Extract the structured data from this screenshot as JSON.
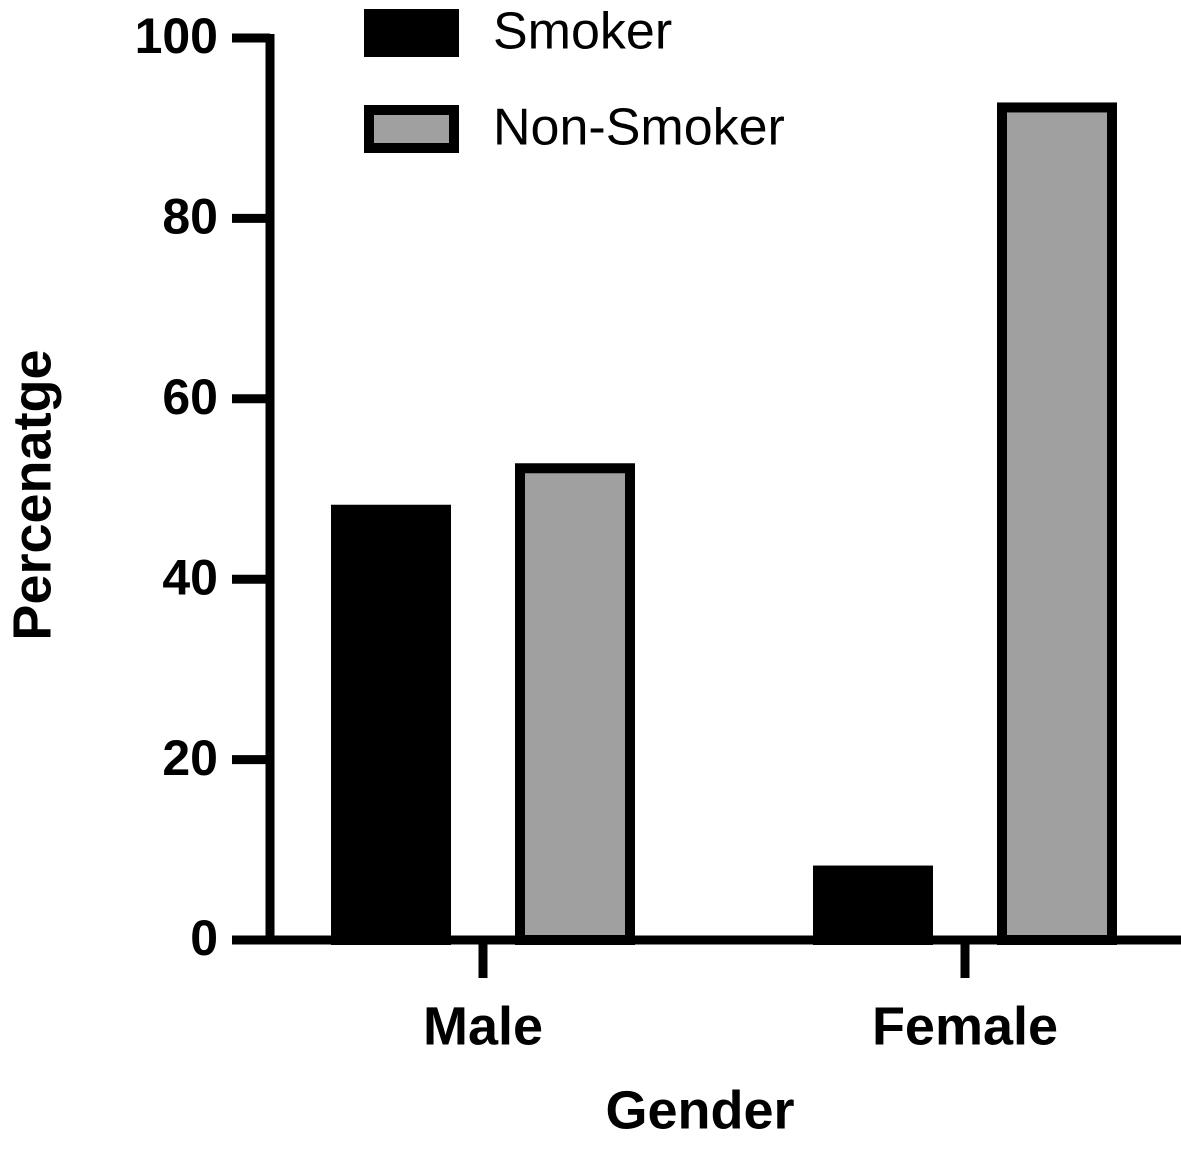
{
  "chart_data": {
    "type": "bar",
    "x_label": "Gender",
    "y_label": "Percenatge",
    "categories": [
      "Male",
      "Female"
    ],
    "series": [
      {
        "name": "Smoker",
        "color": "#000000",
        "values": [
          47.7,
          7.7
        ]
      },
      {
        "name": "Non-Smoker",
        "color": "#a0a0a0",
        "values": [
          52.3,
          92.3
        ]
      }
    ],
    "ylim": [
      0,
      100
    ],
    "yticks": [
      0,
      20,
      40,
      60,
      80,
      100
    ],
    "grid": false,
    "legend": "top"
  }
}
